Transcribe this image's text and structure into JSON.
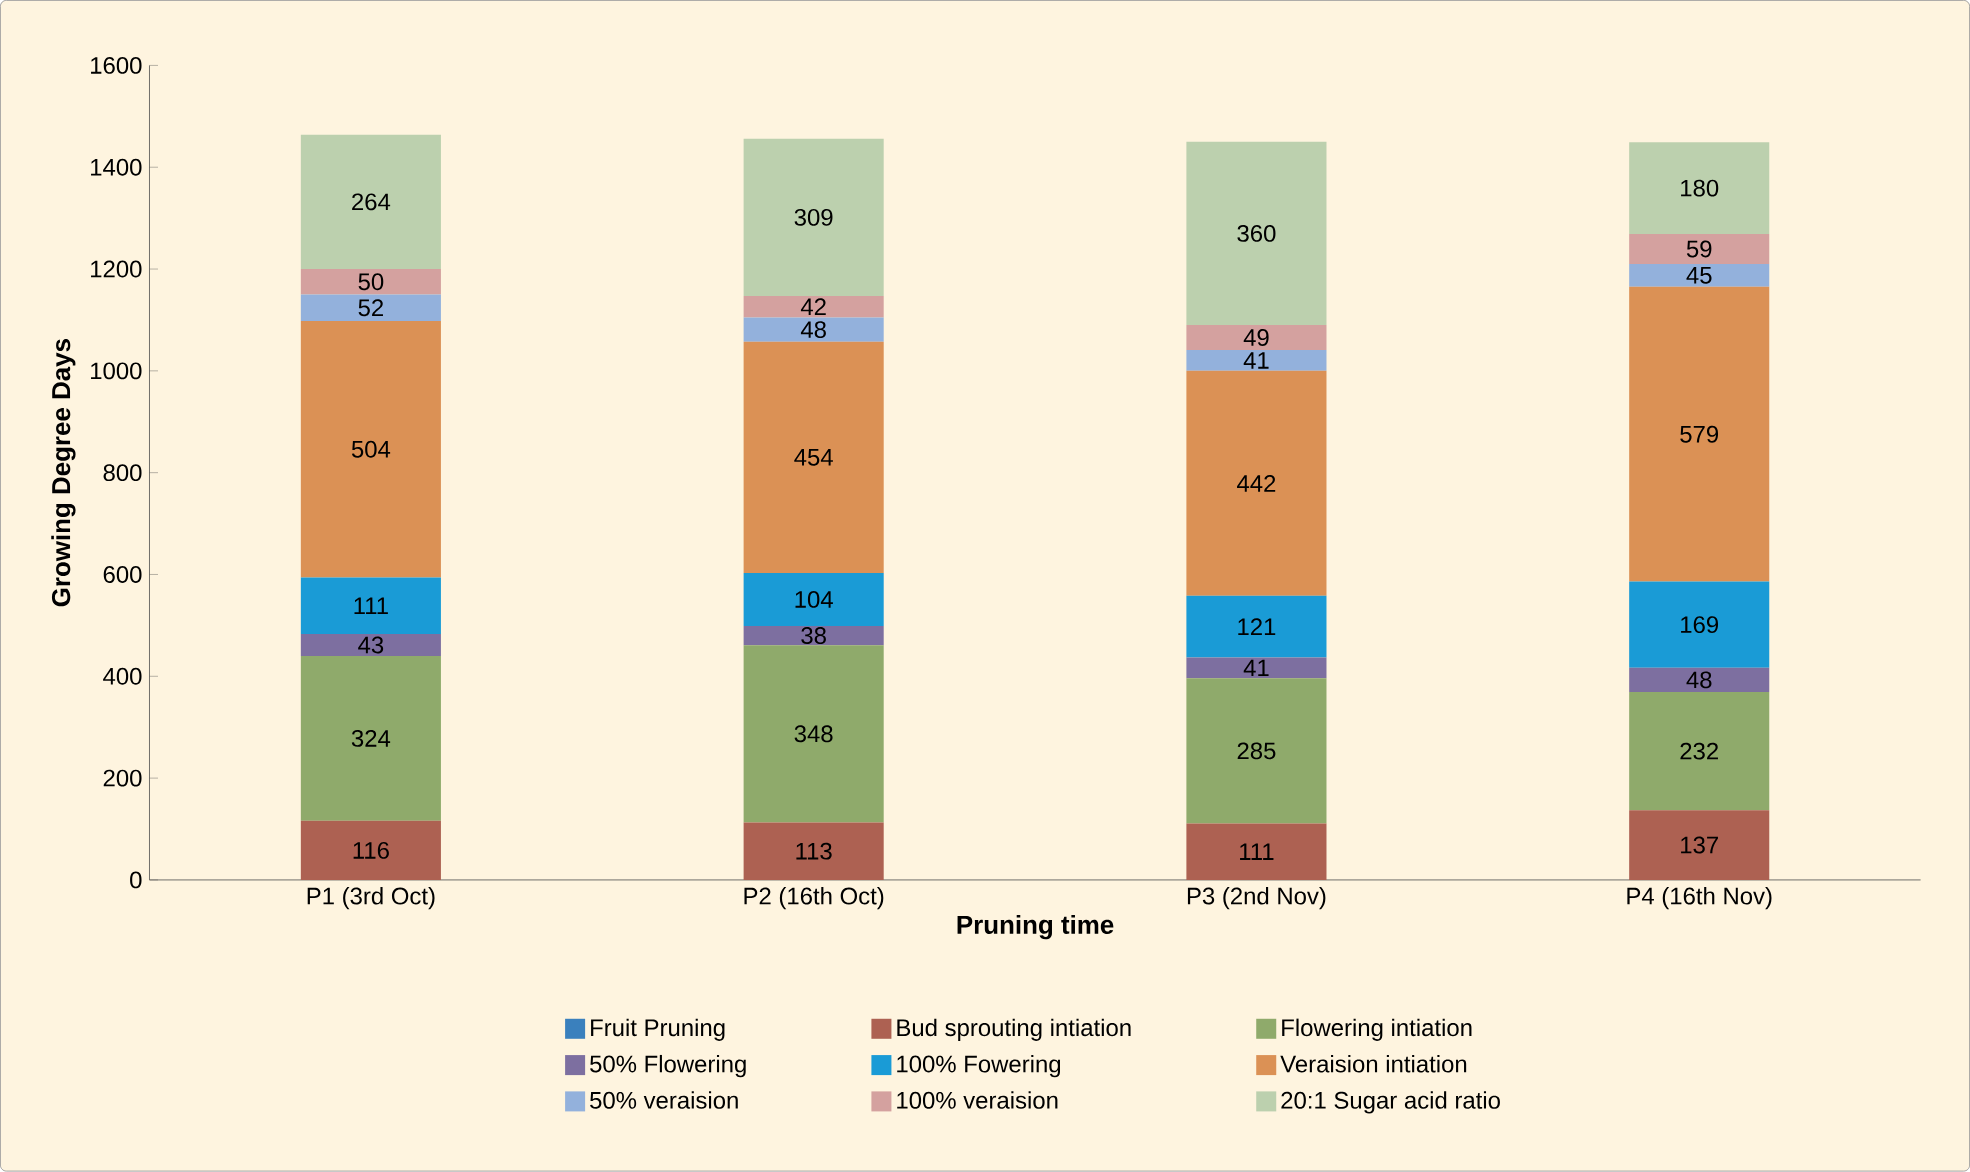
{
  "chart_data": {
    "type": "bar",
    "stacked": true,
    "xlabel": "Pruning time",
    "ylabel": "Growing Degree Days",
    "categories": [
      "P1 (3rd Oct)",
      "P2 (16th Oct)",
      "P3 (2nd Nov)",
      "P4 (16th Nov)"
    ],
    "ylim": [
      0,
      1600
    ],
    "yticks": [
      0,
      200,
      400,
      600,
      800,
      1000,
      1200,
      1400,
      1600
    ],
    "grid": false,
    "legend": "bottom",
    "series": [
      {
        "name": "Fruit Pruning",
        "color": "#3a80bd",
        "values": [
          0,
          0,
          0,
          0
        ],
        "value_labels": [
          null,
          null,
          null,
          null
        ]
      },
      {
        "name": "Bud sprouting intiation",
        "color": "#ad6152",
        "values": [
          116,
          113,
          111,
          137
        ],
        "value_labels": [
          "116",
          "113",
          "111",
          "137"
        ]
      },
      {
        "name": "Flowering intiation",
        "color": "#8faa6b",
        "values": [
          324,
          348,
          285,
          232
        ],
        "value_labels": [
          "324",
          "348",
          "285",
          "232"
        ]
      },
      {
        "name": "50% Flowering",
        "color": "#7d6fa0",
        "values": [
          43,
          38,
          41,
          48
        ],
        "value_labels": [
          "43",
          "38",
          "41",
          "48"
        ]
      },
      {
        "name": "100% Fowering",
        "color": "#1a9bd6",
        "values": [
          111,
          104,
          121,
          169
        ],
        "value_labels": [
          "111",
          "104",
          "121",
          "169"
        ]
      },
      {
        "name": "Veraision intiation",
        "color": "#db9155",
        "values": [
          504,
          454,
          442,
          579
        ],
        "value_labels": [
          "504",
          "454",
          "442",
          "579"
        ]
      },
      {
        "name": "50% veraision",
        "color": "#93b1dc",
        "values": [
          52,
          48,
          41,
          45
        ],
        "value_labels": [
          "52",
          "48",
          "41",
          "45"
        ]
      },
      {
        "name": "100% veraision",
        "color": "#d4a19f",
        "values": [
          50,
          42,
          49,
          59
        ],
        "value_labels": [
          "50",
          "42",
          "49",
          "59"
        ]
      },
      {
        "name": "20:1 Sugar acid ratio",
        "color": "#bcd0ae",
        "values": [
          264,
          309,
          360,
          180
        ],
        "value_labels": [
          "264",
          "309",
          "360",
          "180"
        ]
      }
    ]
  }
}
